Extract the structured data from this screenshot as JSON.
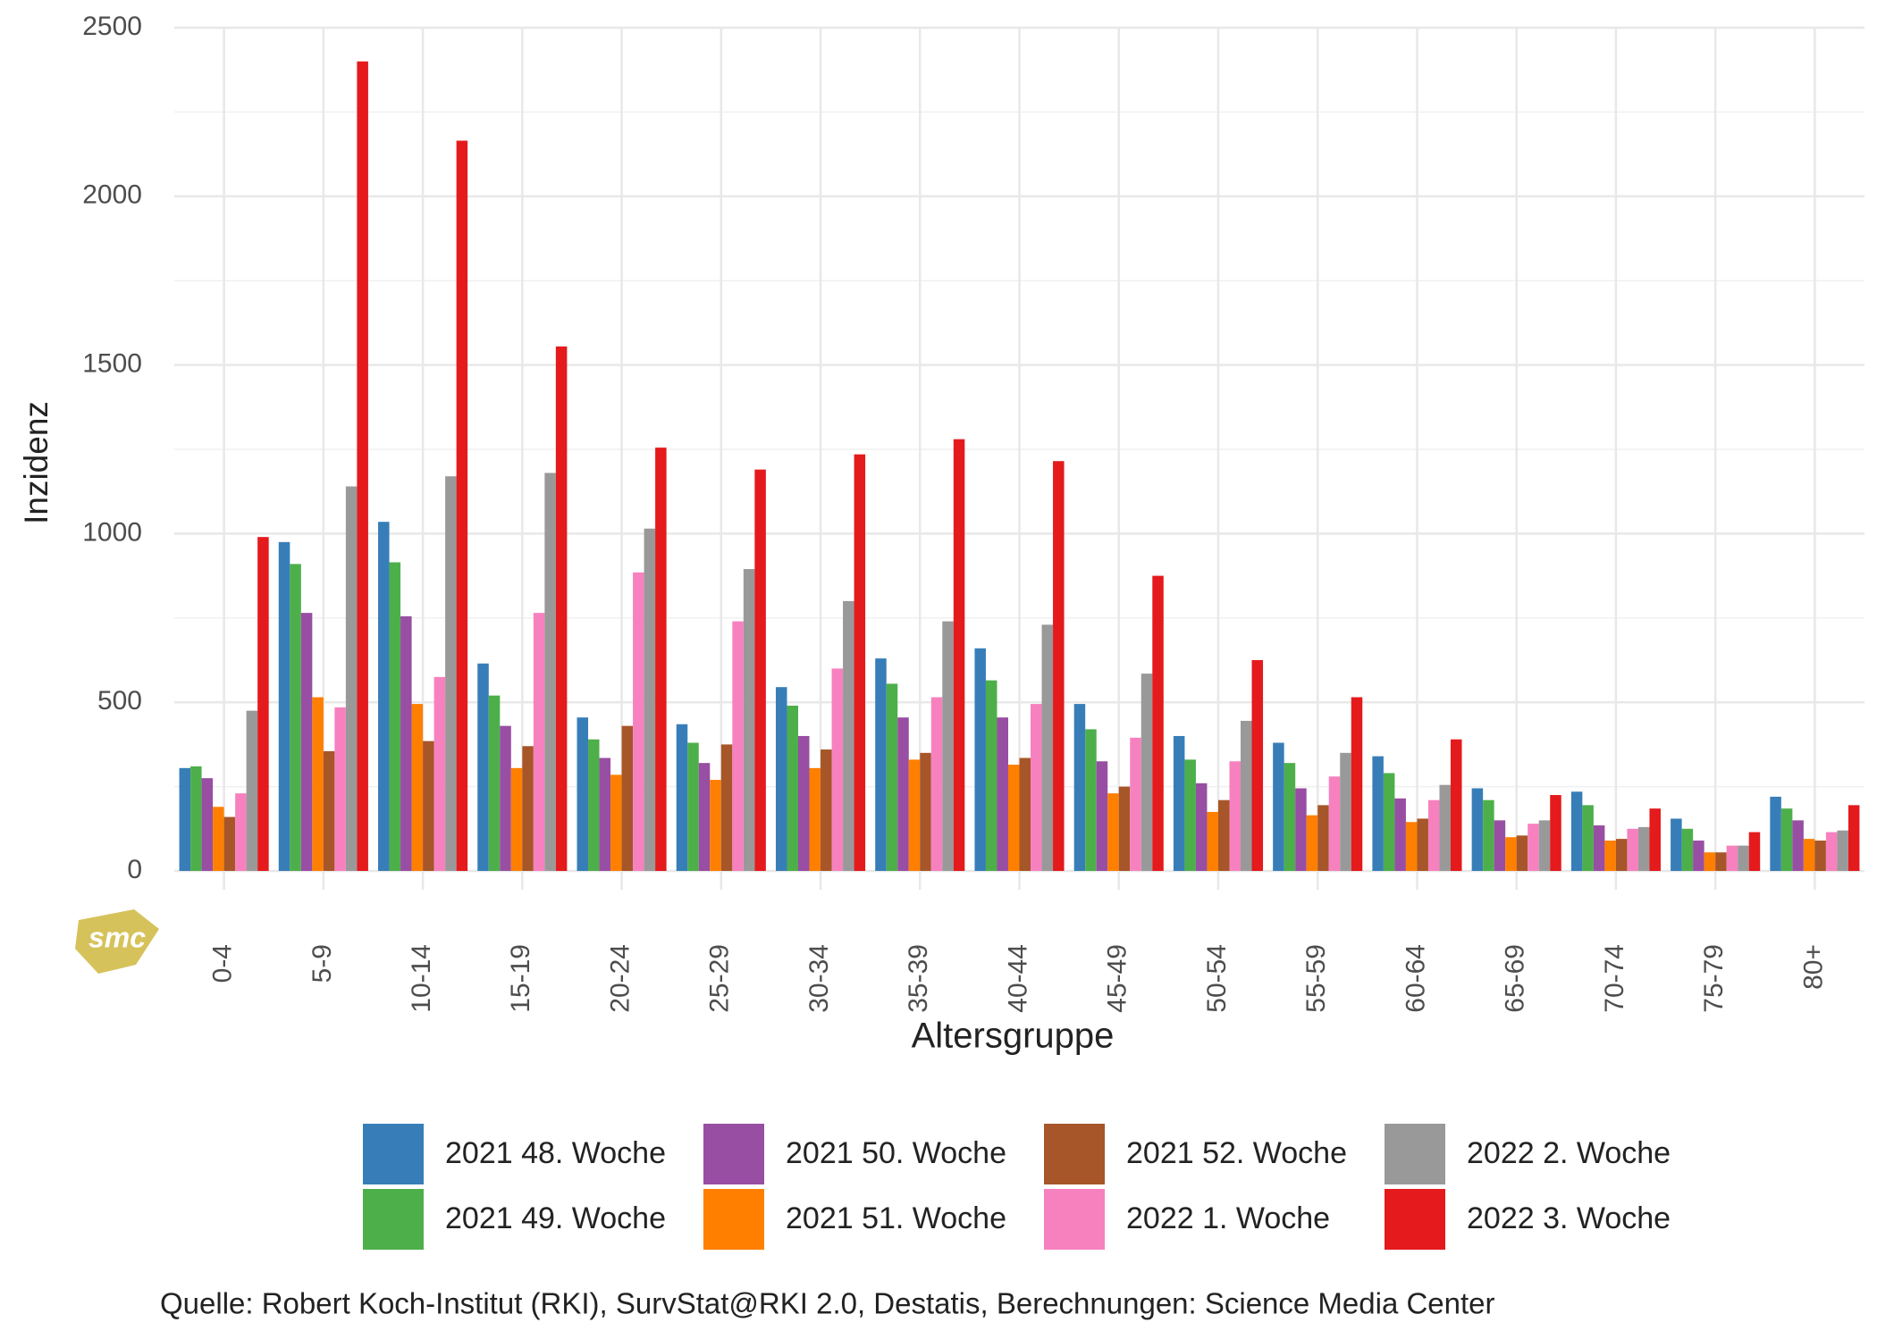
{
  "chart_data": {
    "type": "bar",
    "y_label": "Inzidenz",
    "x_label": "Altersgruppe",
    "caption": "Quelle: Robert Koch-Institut (RKI), SurvStat@RKI 2.0, Destatis, Berechnungen: Science Media Center",
    "logo": "smc",
    "categories": [
      "0-4",
      "5-9",
      "10-14",
      "15-19",
      "20-24",
      "25-29",
      "30-34",
      "35-39",
      "40-44",
      "45-49",
      "50-54",
      "55-59",
      "60-64",
      "65-69",
      "70-74",
      "75-79",
      "80+"
    ],
    "series": [
      {
        "name": "2021 48. Woche",
        "color": "#377eb8",
        "values": [
          305,
          975,
          1035,
          615,
          455,
          435,
          545,
          630,
          660,
          495,
          400,
          380,
          340,
          245,
          235,
          155,
          220
        ]
      },
      {
        "name": "2021 49. Woche",
        "color": "#4daf4a",
        "values": [
          310,
          910,
          915,
          520,
          390,
          380,
          490,
          555,
          565,
          420,
          330,
          320,
          290,
          210,
          195,
          125,
          185
        ]
      },
      {
        "name": "2021 50. Woche",
        "color": "#984ea3",
        "values": [
          275,
          765,
          755,
          430,
          335,
          320,
          400,
          455,
          455,
          325,
          260,
          245,
          215,
          150,
          135,
          90,
          150
        ]
      },
      {
        "name": "2021 51. Woche",
        "color": "#ff7f00",
        "values": [
          190,
          515,
          495,
          305,
          285,
          270,
          305,
          330,
          315,
          230,
          175,
          165,
          145,
          100,
          90,
          55,
          95
        ]
      },
      {
        "name": "2021 52. Woche",
        "color": "#a65628",
        "values": [
          160,
          355,
          385,
          370,
          430,
          375,
          360,
          350,
          335,
          250,
          210,
          195,
          155,
          105,
          95,
          55,
          90
        ]
      },
      {
        "name": "2022 1. Woche",
        "color": "#f781bf",
        "values": [
          230,
          485,
          575,
          765,
          885,
          740,
          600,
          515,
          495,
          395,
          325,
          280,
          210,
          140,
          125,
          75,
          115
        ]
      },
      {
        "name": "2022 2. Woche",
        "color": "#999999",
        "values": [
          475,
          1140,
          1170,
          1180,
          1015,
          895,
          800,
          740,
          730,
          585,
          445,
          350,
          255,
          150,
          130,
          75,
          120
        ]
      },
      {
        "name": "2022 3. Woche",
        "color": "#e41a1c",
        "values": [
          990,
          2400,
          2165,
          1555,
          1255,
          1190,
          1235,
          1280,
          1215,
          875,
          625,
          515,
          390,
          225,
          185,
          115,
          195
        ]
      }
    ],
    "ylim": [
      0,
      2500
    ],
    "yticks": [
      0,
      500,
      1000,
      1500,
      2000,
      2500
    ],
    "grid": true
  }
}
